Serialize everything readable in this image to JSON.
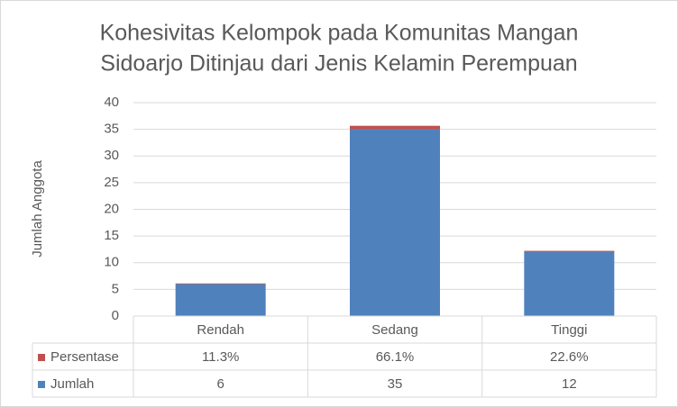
{
  "chart_data": {
    "type": "stacked-bar",
    "title": [
      "Kohesivitas Kelompok pada Komunitas Mangan",
      "Sidoarjo Ditinjau dari Jenis Kelamin Perempuan"
    ],
    "y_label": "Jumlah Anggota",
    "categories": [
      "Rendah",
      "Sedang",
      "Tinggi"
    ],
    "series": [
      {
        "name": "Jumlah",
        "color": "#4f81bd",
        "values": [
          6,
          35,
          12
        ]
      },
      {
        "name": "Persentase",
        "color": "#c0504d",
        "values": [
          0.113,
          0.661,
          0.226
        ],
        "value_labels": [
          "11.3%",
          "66.1%",
          "22.6%"
        ]
      }
    ],
    "ylim": [
      0,
      40
    ],
    "yticks": [
      0,
      5,
      10,
      15,
      20,
      25,
      30,
      35,
      40
    ],
    "grid": true,
    "data_table": true
  }
}
